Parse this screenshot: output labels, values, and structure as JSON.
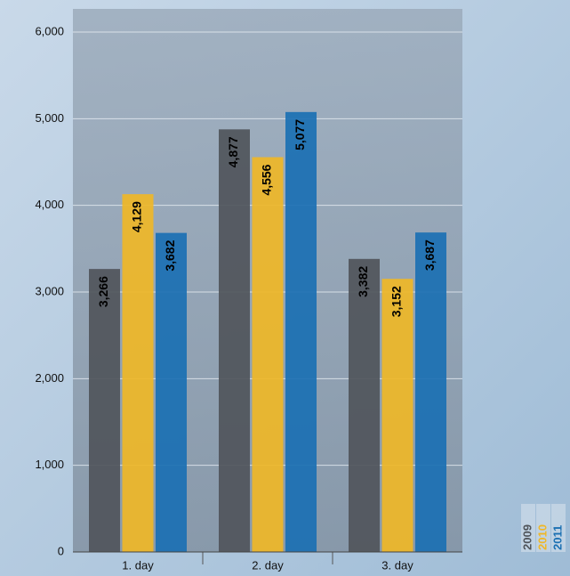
{
  "chart_data": {
    "type": "bar",
    "categories": [
      "1. day",
      "2. day",
      "3. day"
    ],
    "series": [
      {
        "name": "2009",
        "color": "#50555b",
        "values": [
          3266,
          4877,
          3382
        ],
        "value_labels": [
          "3,266",
          "4,877",
          "3,382"
        ]
      },
      {
        "name": "2010",
        "color": "#efb727",
        "values": [
          4129,
          4556,
          3152
        ],
        "value_labels": [
          "4,129",
          "4,556",
          "3,152"
        ]
      },
      {
        "name": "2011",
        "color": "#1b70b3",
        "values": [
          3682,
          5077,
          3687
        ],
        "value_labels": [
          "3,682",
          "5,077",
          "3,687"
        ]
      }
    ],
    "ylim": [
      0,
      6000
    ],
    "yticks": [
      0,
      {
        "value": 1000,
        "label": "1,000"
      },
      {
        "value": 2000,
        "label": "2,000"
      },
      {
        "value": 3000,
        "label": "3,000"
      },
      {
        "value": 4000,
        "label": "4,000"
      },
      {
        "value": 5000,
        "label": "5,000"
      },
      {
        "value": 6000,
        "label": "6,000"
      }
    ],
    "grid": true,
    "legend": "bottom-right"
  }
}
